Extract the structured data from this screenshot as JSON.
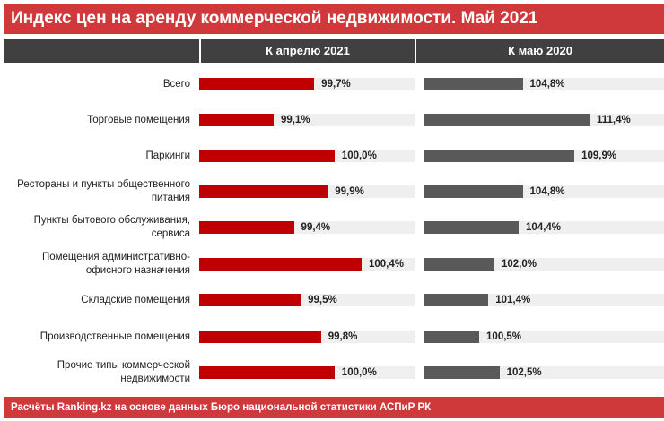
{
  "chart_data": {
    "type": "bar",
    "title": "Индекс цен на аренду коммерческой недвижимости. Май 2021",
    "categories": [
      "Всего",
      "Торговые помещения",
      "Паркинги",
      "Рестораны и пункты общественного питания",
      "Пункты бытового обслуживания, сервиса",
      "Помещения административно-офисного назначения",
      "Складские помещения",
      "Производственные помещения",
      "Прочие типы коммерческой недвижимости"
    ],
    "series": [
      {
        "name": "К апрелю 2021",
        "color": "#c00000",
        "values": [
          99.7,
          99.1,
          100.0,
          99.9,
          99.4,
          100.4,
          99.5,
          99.8,
          100.0
        ],
        "labels": [
          "99,7%",
          "99,1%",
          "100,0%",
          "99,9%",
          "99,4%",
          "100,4%",
          "99,5%",
          "99,8%",
          "100,0%"
        ]
      },
      {
        "name": "К маю 2020",
        "color": "#595959",
        "values": [
          104.8,
          111.4,
          109.9,
          104.8,
          104.4,
          102.0,
          101.4,
          100.5,
          102.5
        ],
        "labels": [
          "104,8%",
          "111,4%",
          "109,9%",
          "104,8%",
          "104,4%",
          "102,0%",
          "101,4%",
          "100,5%",
          "102,5%"
        ]
      }
    ],
    "source": "Расчёты Ranking.kz на основе данных Бюро национальной статистики АСПиР РК"
  }
}
